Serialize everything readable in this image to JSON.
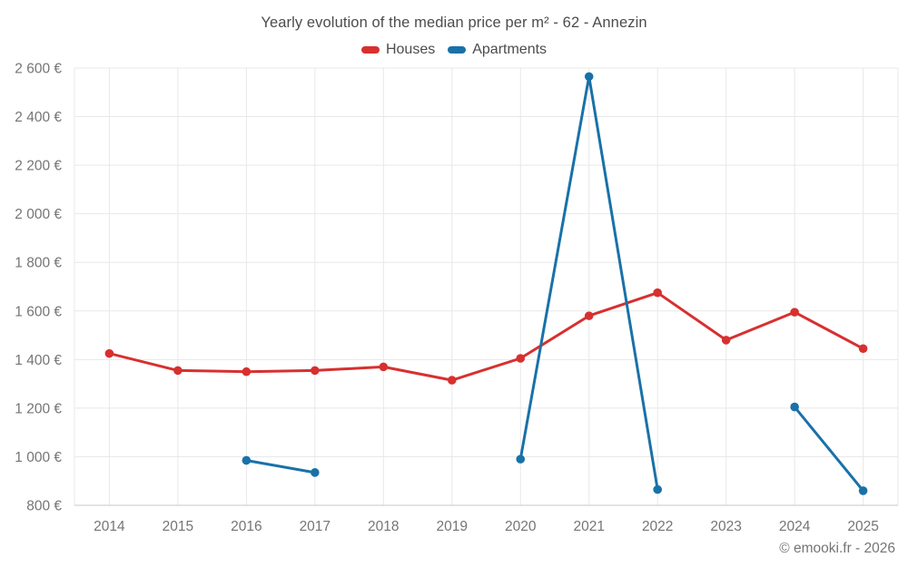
{
  "header": {
    "title": "Yearly evolution of the median price per m² - 62 - Annezin"
  },
  "footer": {
    "copyright": "© emooki.fr - 2026"
  },
  "chart_data": {
    "type": "line",
    "title": "Yearly evolution of the median price per m² - 62 - Annezin",
    "categories": [
      "2014",
      "2015",
      "2016",
      "2017",
      "2018",
      "2019",
      "2020",
      "2021",
      "2022",
      "2023",
      "2024",
      "2025"
    ],
    "series": [
      {
        "name": "Houses",
        "color": "#d7302f",
        "values": [
          1425,
          1355,
          1350,
          1355,
          1370,
          1315,
          1405,
          1580,
          1675,
          1480,
          1595,
          1445
        ]
      },
      {
        "name": "Apartments",
        "color": "#1971a8",
        "values": [
          null,
          null,
          985,
          935,
          null,
          null,
          990,
          2565,
          865,
          null,
          1205,
          860
        ]
      }
    ],
    "xlabel": "",
    "ylabel": "",
    "ylim": [
      800,
      2600
    ],
    "ytick_step": 200,
    "ytick_suffix": " €",
    "thousands_separator": " ",
    "grid": true,
    "legend_position": "top",
    "marker": "circle",
    "colors": {
      "background": "#ffffff",
      "grid_line": "#e8e8e8",
      "axis_line": "#c9c9c9",
      "tick_text": "#757575",
      "title_text": "#4c4c4c"
    }
  }
}
